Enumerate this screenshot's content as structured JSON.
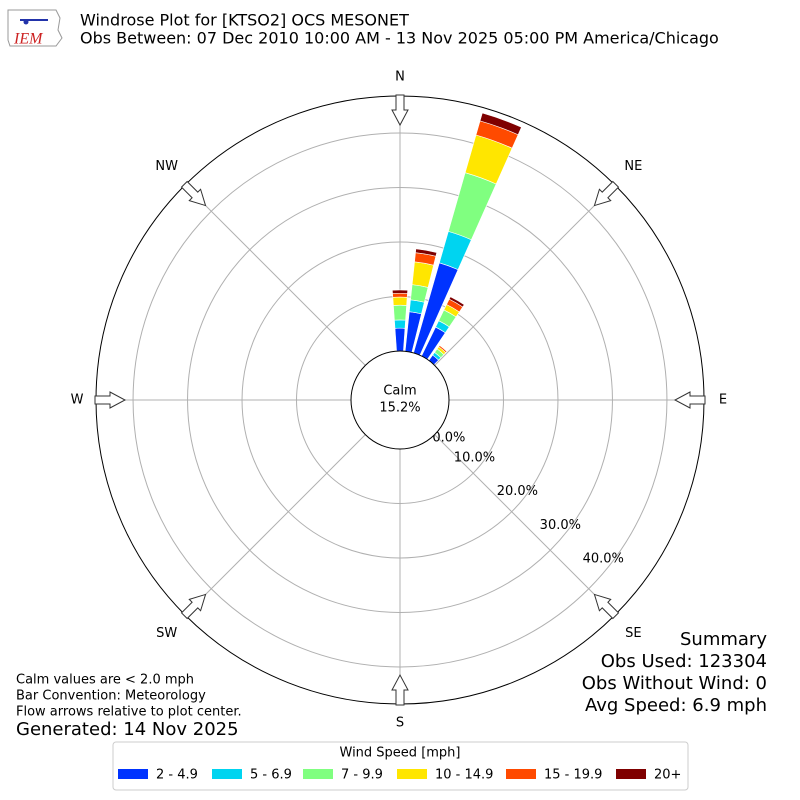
{
  "logo": "IEM",
  "chart_data": {
    "type": "windrose",
    "title": "Windrose Plot for [KTSO2] OCS MESONET",
    "subtitle": "Obs Between: 07 Dec 2010 10:00 AM - 13 Nov 2025 05:00 PM America/Chicago",
    "directions": [
      0,
      10,
      20,
      30,
      40
    ],
    "compass_labels": [
      "N",
      "NE",
      "E",
      "SE",
      "S",
      "SW",
      "W",
      "NW"
    ],
    "calm_label": "Calm",
    "calm_value": 15.2,
    "calm_value_label": "15.2%",
    "rlim": [
      0,
      46.8
    ],
    "rticks": [
      {
        "value": 0,
        "label": "0.0%"
      },
      {
        "value": 10,
        "label": "10.0%"
      },
      {
        "value": 20,
        "label": "20.0%"
      },
      {
        "value": 30,
        "label": "30.0%"
      },
      {
        "value": 40,
        "label": "40.0%"
      }
    ],
    "grid": true,
    "legend_title": "Wind Speed [mph]",
    "legend_position": "bottom",
    "series": [
      {
        "name": "2 - 4.9",
        "color": "#0033ff",
        "values": [
          4.2,
          7.3,
          17.2,
          5.9,
          1.2
        ]
      },
      {
        "name": "5 - 6.9",
        "color": "#00d4f0",
        "values": [
          1.5,
          2.2,
          6.0,
          1.3,
          0.6
        ]
      },
      {
        "name": "7 - 9.9",
        "color": "#80ff80",
        "values": [
          2.7,
          2.8,
          11.2,
          2.2,
          0.8
        ]
      },
      {
        "name": "10 - 14.9",
        "color": "#ffe600",
        "values": [
          1.5,
          4.2,
          7.2,
          1.1,
          0.5
        ]
      },
      {
        "name": "15 - 19.9",
        "color": "#ff4a00",
        "values": [
          0.7,
          1.7,
          2.7,
          1.1,
          0.3
        ]
      },
      {
        "name": "20+",
        "color": "#7f0000",
        "values": [
          0.6,
          0.7,
          1.5,
          0.5,
          0.1
        ]
      }
    ],
    "notes": [
      "Calm values are < 2.0 mph",
      "Bar Convention: Meteorology",
      "Flow arrows relative to plot center."
    ],
    "generated": "Generated: 14 Nov 2025",
    "summary": [
      "Summary",
      "Obs Used: 123304",
      "Obs Without Wind: 0",
      "Avg Speed: 6.9 mph"
    ]
  }
}
